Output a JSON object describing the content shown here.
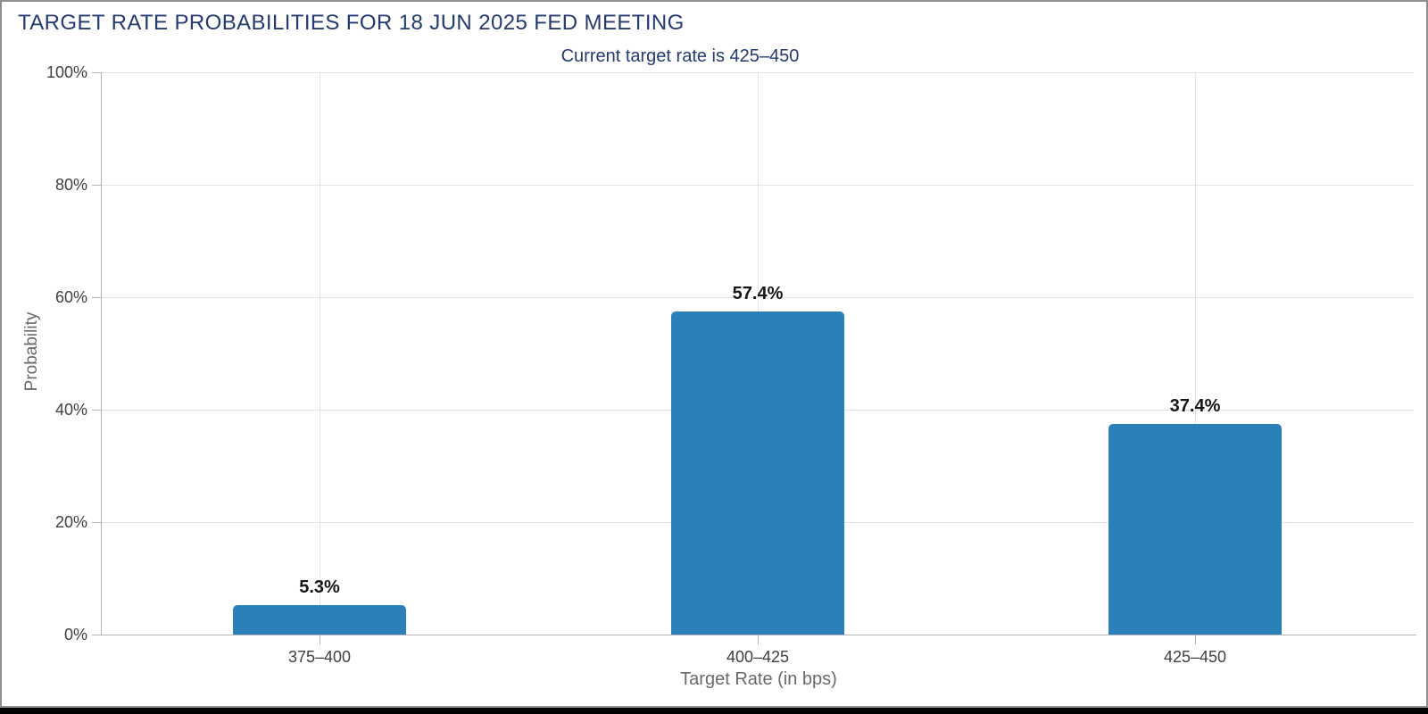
{
  "chart_data": {
    "type": "bar",
    "title": "TARGET RATE PROBABILITIES FOR 18 JUN 2025 FED MEETING",
    "subtitle": "Current target rate is 425–450",
    "categories": [
      "375–400",
      "400–425",
      "425–450"
    ],
    "values": [
      5.3,
      57.4,
      37.4
    ],
    "value_labels": [
      "5.3%",
      "57.4%",
      "37.4%"
    ],
    "xlabel": "Target Rate (in bps)",
    "ylabel": "Probability",
    "ylim": [
      0,
      100
    ],
    "yticks": [
      0,
      20,
      40,
      60,
      80,
      100
    ],
    "ytick_labels": [
      "0%",
      "20%",
      "40%",
      "60%",
      "80%",
      "100%"
    ],
    "legend": "none",
    "grid": "on",
    "colors": {
      "bar": "#2b80b9",
      "title": "#243a70",
      "subtitle": "#243a70",
      "tick_label": "#404040",
      "axis_title": "#6a6a6a",
      "gridline": "#e4e4e4",
      "axis_line": "#b3b3b3",
      "value_label": "#161616",
      "frame_border": "#8f8f8f",
      "background": "#ffffff"
    }
  }
}
